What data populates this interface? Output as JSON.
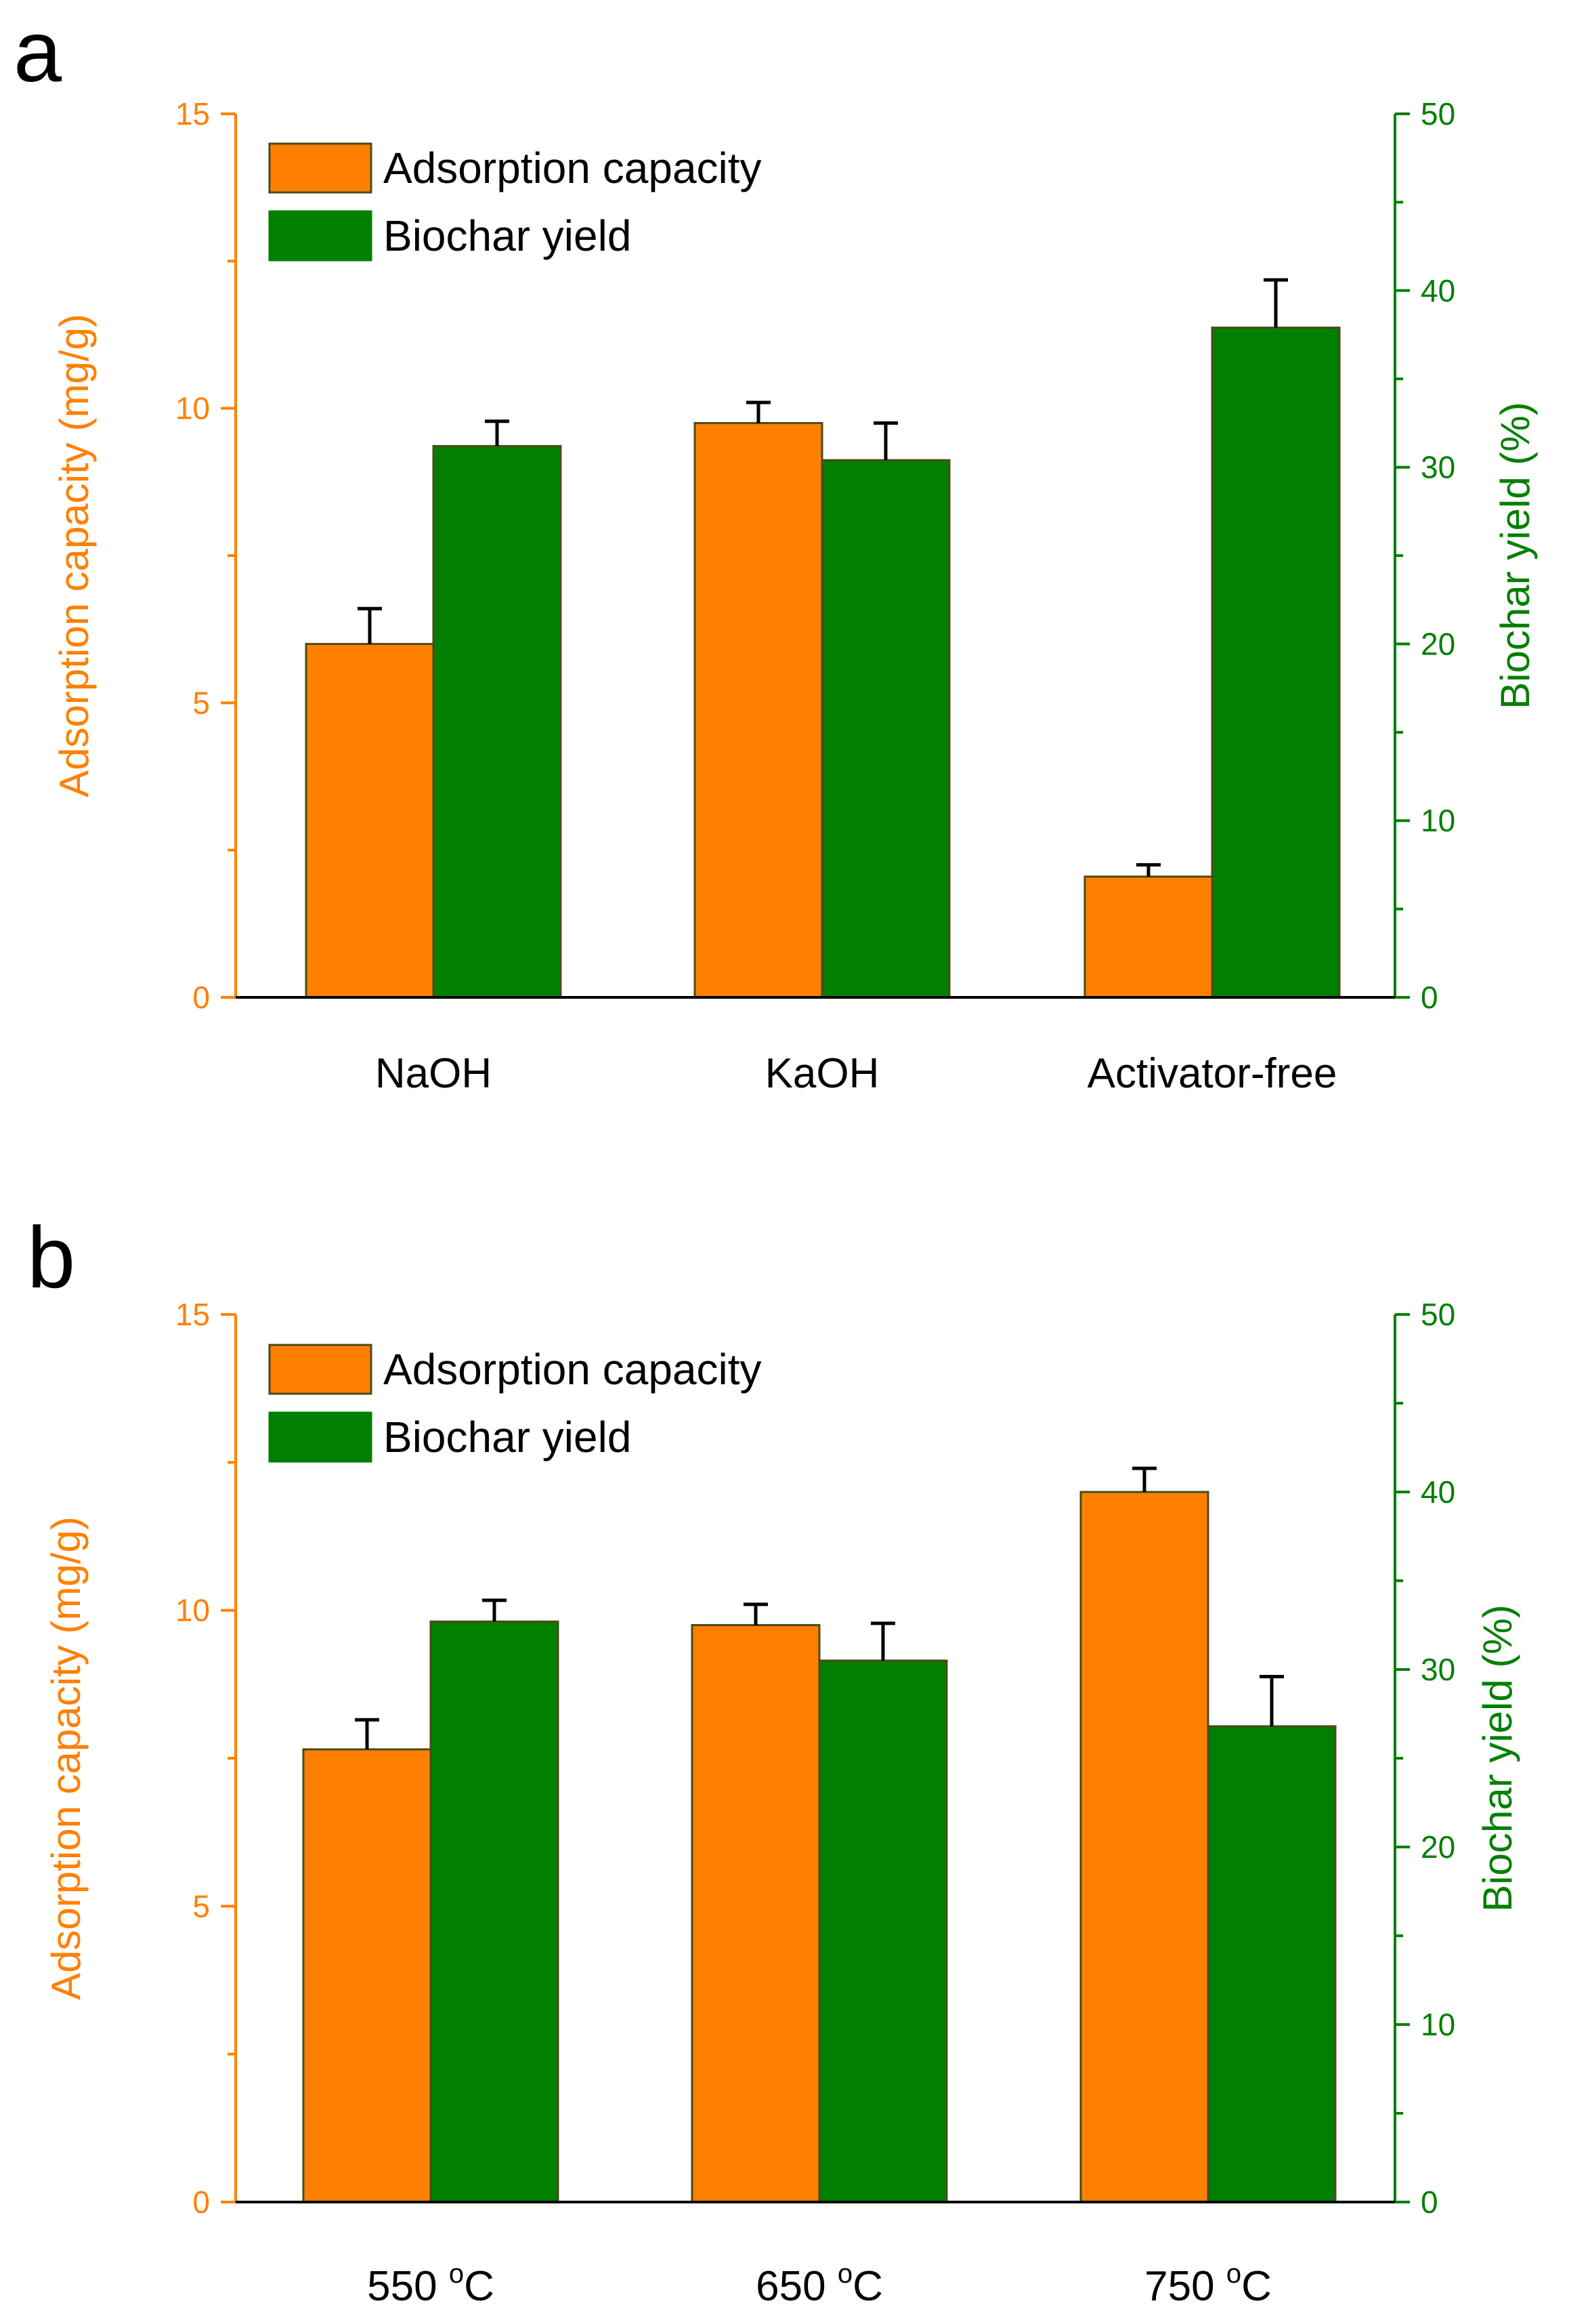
{
  "chart_data": [
    {
      "type": "bar",
      "panel": "a",
      "categories": [
        "NaOH",
        "KaOH",
        "Activator-free"
      ],
      "y_left": {
        "label": "Adsorption capacity (mg/g)",
        "ylim": [
          0,
          15
        ],
        "ticks": [
          0,
          5,
          10,
          15
        ],
        "color": "#ff8000"
      },
      "y_right": {
        "label": "Biochar yield (%)",
        "ylim": [
          0,
          50
        ],
        "ticks": [
          0,
          10,
          20,
          30,
          40,
          50
        ],
        "color": "#007f00"
      },
      "legend_position": "top-left",
      "series": [
        {
          "name": "Adsorption capacity",
          "axis": "left",
          "color": "#ff8000",
          "values": [
            6.0,
            9.75,
            2.05
          ],
          "errors": [
            0.6,
            0.35,
            0.2
          ]
        },
        {
          "name": "Biochar yield",
          "axis": "right",
          "color": "#007f00",
          "values": [
            31.2,
            30.4,
            37.9
          ],
          "errors": [
            1.4,
            2.1,
            2.7
          ]
        }
      ]
    },
    {
      "type": "bar",
      "panel": "b",
      "categories": [
        "550 °C",
        "650 °C",
        "750 °C"
      ],
      "y_left": {
        "label": "Adsorption capacity (mg/g)",
        "ylim": [
          0,
          15
        ],
        "ticks": [
          0,
          5,
          10,
          15
        ],
        "color": "#ff8000"
      },
      "y_right": {
        "label": "Biochar yield (%)",
        "ylim": [
          0,
          50
        ],
        "ticks": [
          0,
          10,
          20,
          30,
          40,
          50
        ],
        "color": "#007f00"
      },
      "legend_position": "top-left",
      "series": [
        {
          "name": "Adsorption capacity",
          "axis": "left",
          "color": "#ff8000",
          "values": [
            7.65,
            9.75,
            12.0
          ],
          "errors": [
            0.5,
            0.35,
            0.4
          ]
        },
        {
          "name": "Biochar yield",
          "axis": "right",
          "color": "#007f00",
          "values": [
            32.7,
            30.5,
            26.8
          ],
          "errors": [
            1.2,
            2.1,
            2.8
          ]
        }
      ]
    }
  ]
}
